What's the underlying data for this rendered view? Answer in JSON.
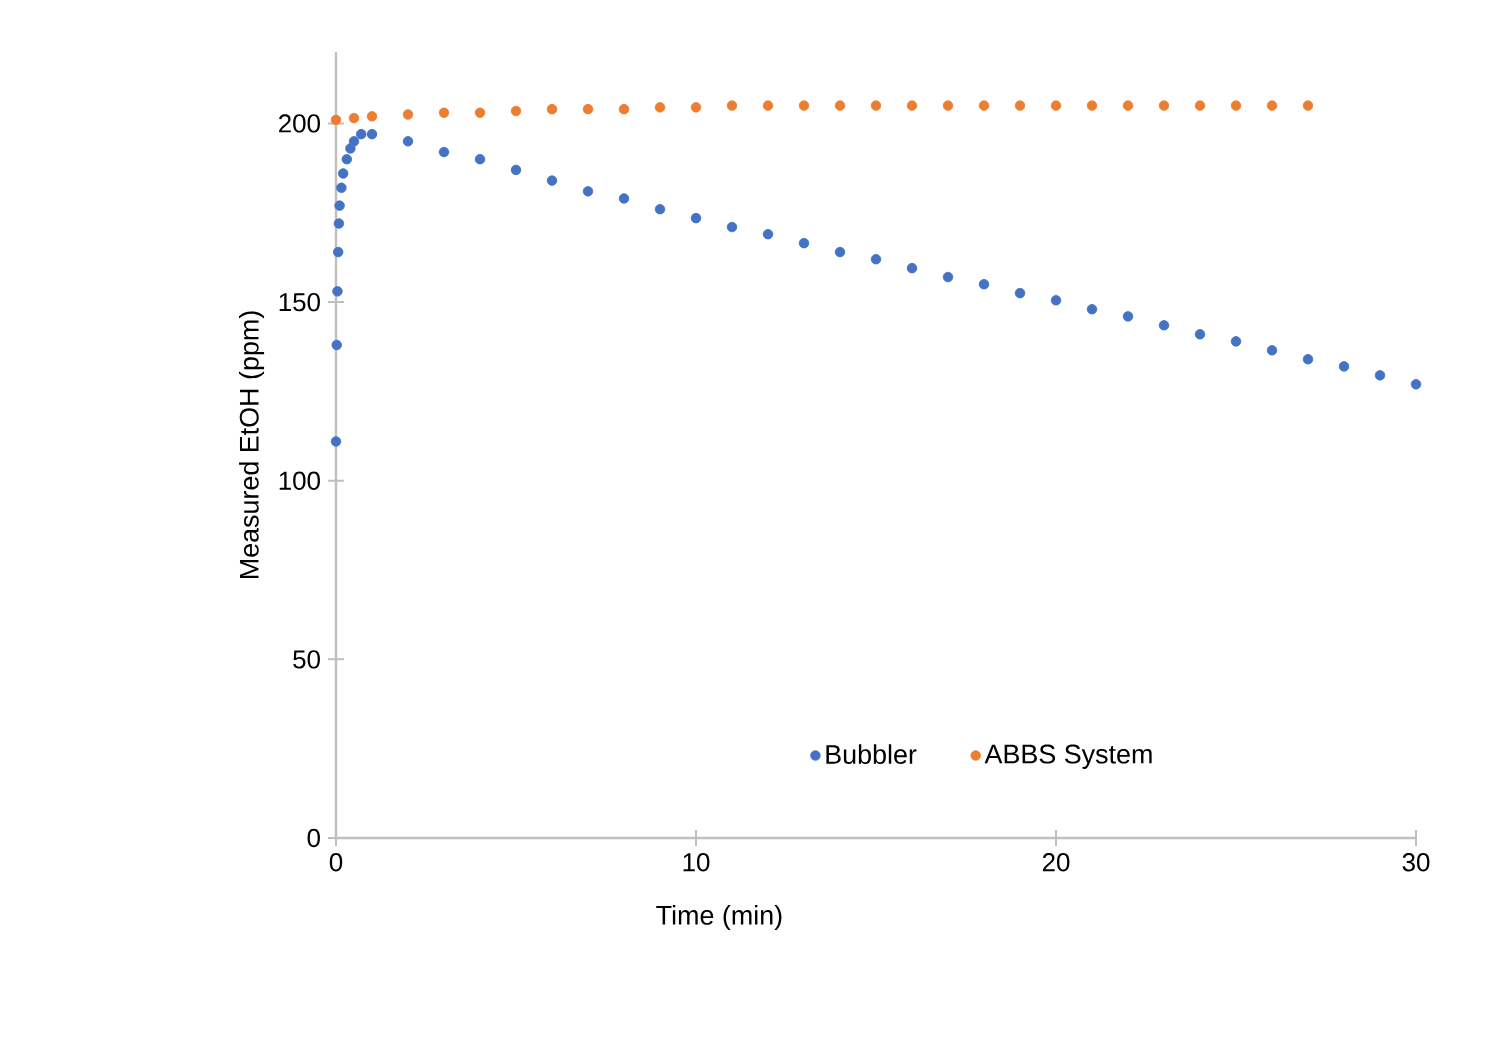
{
  "chart_data": {
    "type": "scatter",
    "xlabel": "Time (min)",
    "ylabel": "Measured EtOH (ppm)",
    "xlim": [
      0,
      30
    ],
    "ylim": [
      0,
      220
    ],
    "xticks": [
      0,
      10,
      20,
      30
    ],
    "yticks": [
      0,
      50,
      100,
      150,
      200
    ],
    "marker": "circle",
    "legend": "bottom",
    "series": [
      {
        "name": "Bubbler",
        "color": "#4472c4",
        "x": [
          0,
          0.02,
          0.04,
          0.06,
          0.08,
          0.1,
          0.15,
          0.2,
          0.3,
          0.4,
          0.5,
          0.7,
          1,
          2,
          3,
          4,
          5,
          6,
          7,
          8,
          9,
          10,
          11,
          12,
          13,
          14,
          15,
          16,
          17,
          18,
          19,
          20,
          21,
          22,
          23,
          24,
          25,
          26,
          27,
          28,
          29,
          30
        ],
        "values": [
          111,
          138,
          153,
          164,
          172,
          177,
          182,
          186,
          190,
          193,
          195,
          197,
          197,
          195,
          192,
          190,
          187,
          184,
          181,
          179,
          176,
          173.5,
          171,
          169,
          166.5,
          164,
          162,
          159.5,
          157,
          155,
          152.5,
          150.5,
          148,
          146,
          143.5,
          141,
          139,
          136.5,
          134,
          132,
          129.5,
          127
        ]
      },
      {
        "name": "ABBS System",
        "color": "#ed7d31",
        "x": [
          0,
          0.5,
          1,
          2,
          3,
          4,
          5,
          6,
          7,
          8,
          9,
          10,
          11,
          12,
          13,
          14,
          15,
          16,
          17,
          18,
          19,
          20,
          21,
          22,
          23,
          24,
          25,
          26,
          27
        ],
        "values": [
          201,
          201.5,
          202,
          202.5,
          203,
          203,
          203.5,
          204,
          204,
          204,
          204.5,
          204.5,
          205,
          205,
          205,
          205,
          205,
          205,
          205,
          205,
          205,
          205,
          205,
          205,
          205,
          205,
          205,
          205,
          205
        ]
      }
    ]
  }
}
